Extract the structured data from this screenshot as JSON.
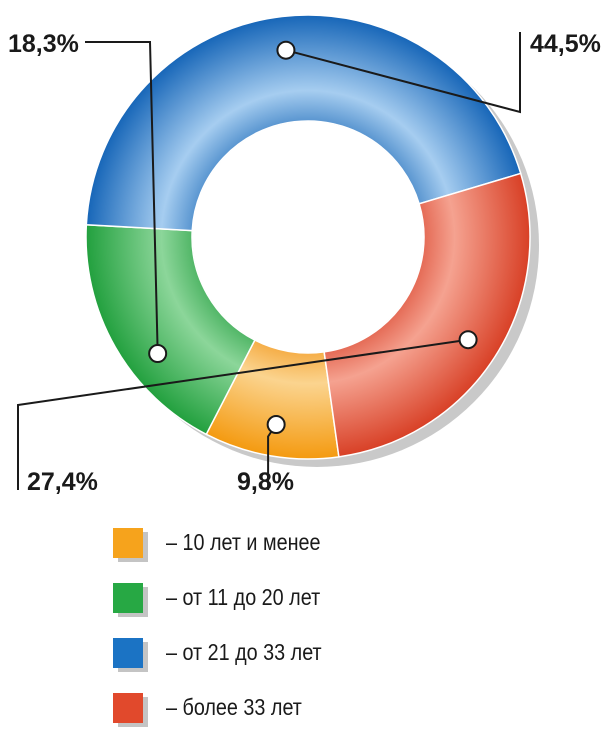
{
  "chart_data": {
    "type": "pie",
    "donut": true,
    "categories": [
      "– 10 лет и менее",
      "– от 11 до 20 лет",
      "– от 21 до 33 лет",
      "– более 33 лет"
    ],
    "values": [
      9.8,
      18.3,
      44.5,
      27.4
    ],
    "value_labels": [
      "9,8%",
      "18,3%",
      "44,5%",
      "27,4%"
    ],
    "colors": [
      "#f6a31c",
      "#27a844",
      "#1b73c4",
      "#e1492c"
    ],
    "title": "",
    "legend_position": "bottom"
  }
}
